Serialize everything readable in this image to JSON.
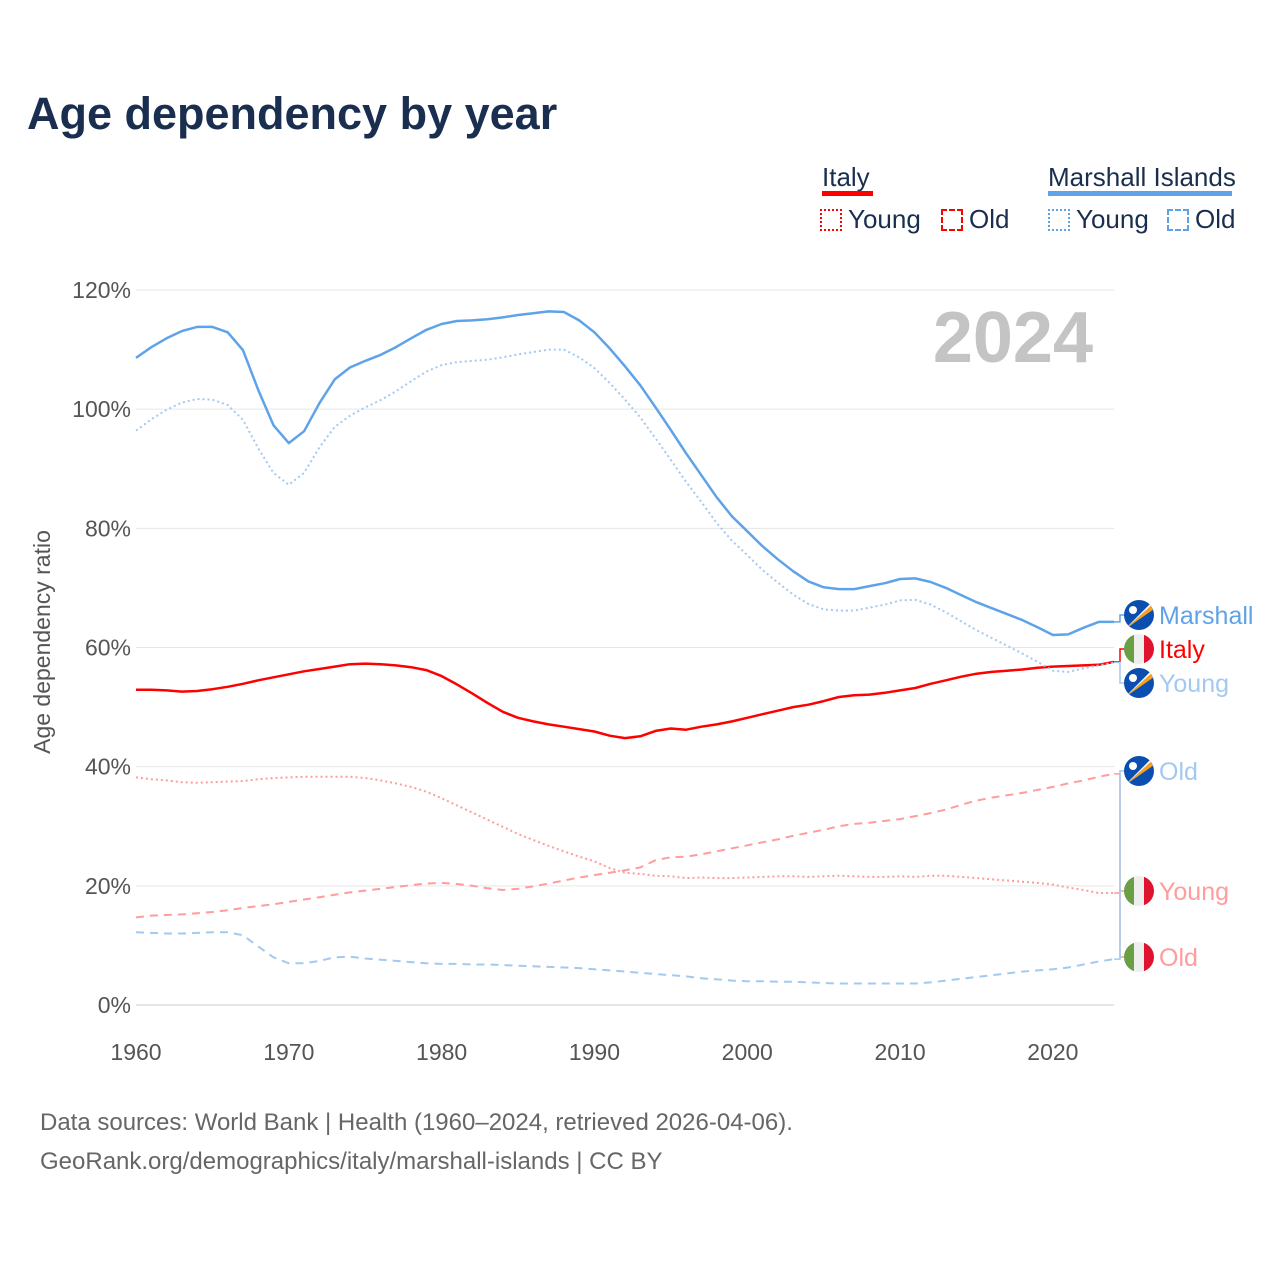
{
  "title": "Age dependency by year",
  "legend": {
    "groups": [
      {
        "country": "Italy",
        "color": "#ff0000",
        "young": "Young",
        "old": "Old"
      },
      {
        "country": "Marshall Islands",
        "color": "#5ea3e8",
        "young": "Young",
        "old": "Old"
      }
    ]
  },
  "source": {
    "line1": "Data sources: World Bank | Health (1960–2024, retrieved 2026-04-06).",
    "line2": "GeoRank.org/demographics/italy/marshall-islands | CC BY"
  },
  "chart_data": {
    "type": "line",
    "title": "Age dependency by year",
    "ylabel": "Age dependency ratio",
    "xlabel": "",
    "year_label": "2024",
    "xlim": [
      1960,
      2024
    ],
    "ylim": [
      0,
      120
    ],
    "x_ticks": [
      "1960",
      "1970",
      "1980",
      "1990",
      "2000",
      "2010",
      "2020"
    ],
    "y_ticks": [
      "0%",
      "20%",
      "40%",
      "60%",
      "80%",
      "100%",
      "120%"
    ],
    "grid": true,
    "x_start": 1960,
    "series": [
      {
        "name": "Marshall Islands",
        "label": "Marshall",
        "style": "solid",
        "color": "#5ea3e8",
        "flag": "marshall-islands",
        "values": [
          108.6,
          110.4,
          111.9,
          113.1,
          113.8,
          113.8,
          112.9,
          109.9,
          103.2,
          97.3,
          94.3,
          96.3,
          101.0,
          105.0,
          107.0,
          108.1,
          109.1,
          110.4,
          111.9,
          113.3,
          114.3,
          114.8,
          114.9,
          115.1,
          115.4,
          115.8,
          116.1,
          116.4,
          116.3,
          114.9,
          112.9,
          110.2,
          107.2,
          104.0,
          100.3,
          96.5,
          92.6,
          88.9,
          85.2,
          82.0,
          79.5,
          77.0,
          74.8,
          72.8,
          71.1,
          70.1,
          69.8,
          69.8,
          70.3,
          70.8,
          71.5,
          71.6,
          71.0,
          70.0,
          68.8,
          67.6,
          66.6,
          65.6,
          64.6,
          63.4,
          62.1,
          62.2,
          63.3,
          64.3,
          64.3
        ]
      },
      {
        "name": "Italy",
        "label": "Italy",
        "style": "solid",
        "color": "#ff0000",
        "flag": "italy",
        "values": [
          52.9,
          52.9,
          52.8,
          52.6,
          52.7,
          53.0,
          53.4,
          53.9,
          54.5,
          55.0,
          55.5,
          56.0,
          56.4,
          56.8,
          57.2,
          57.3,
          57.2,
          57.0,
          56.7,
          56.2,
          55.2,
          53.8,
          52.3,
          50.7,
          49.2,
          48.2,
          47.6,
          47.1,
          46.7,
          46.3,
          45.9,
          45.2,
          44.8,
          45.1,
          46.0,
          46.4,
          46.2,
          46.7,
          47.1,
          47.6,
          48.2,
          48.8,
          49.4,
          50.0,
          50.4,
          51.0,
          51.7,
          52.0,
          52.1,
          52.4,
          52.8,
          53.2,
          53.9,
          54.5,
          55.1,
          55.6,
          55.9,
          56.1,
          56.3,
          56.6,
          56.8,
          56.9,
          57.0,
          57.1,
          57.6
        ]
      },
      {
        "name": "Marshall Islands Young",
        "label": "Young",
        "style": "dotted",
        "color": "#a3c9f0",
        "flag": "marshall-islands",
        "values": [
          96.4,
          98.3,
          99.9,
          101.1,
          101.7,
          101.6,
          100.7,
          98.2,
          93.4,
          89.3,
          87.3,
          89.3,
          93.6,
          97.0,
          98.9,
          100.3,
          101.5,
          103.0,
          104.7,
          106.3,
          107.4,
          107.9,
          108.1,
          108.3,
          108.7,
          109.2,
          109.6,
          110.0,
          110.0,
          108.7,
          106.9,
          104.4,
          101.6,
          98.6,
          95.1,
          91.5,
          87.8,
          84.4,
          80.9,
          77.9,
          75.5,
          73.0,
          70.9,
          68.9,
          67.3,
          66.4,
          66.2,
          66.2,
          66.7,
          67.2,
          67.9,
          68.0,
          67.2,
          65.9,
          64.4,
          62.9,
          61.6,
          60.3,
          59.0,
          57.6,
          56.1,
          55.9,
          56.5,
          57.0,
          57.5
        ]
      },
      {
        "name": "Italy Old",
        "label": "Old",
        "style": "dashed",
        "color": "#ff9c9c",
        "flag": "italy",
        "values": [
          14.7,
          15.0,
          15.1,
          15.2,
          15.4,
          15.6,
          15.9,
          16.3,
          16.6,
          16.9,
          17.3,
          17.7,
          18.1,
          18.5,
          18.9,
          19.2,
          19.5,
          19.8,
          20.1,
          20.4,
          20.5,
          20.3,
          20.0,
          19.6,
          19.3,
          19.5,
          19.9,
          20.4,
          20.9,
          21.4,
          21.8,
          22.2,
          22.6,
          23.1,
          24.3,
          24.8,
          24.9,
          25.3,
          25.8,
          26.3,
          26.8,
          27.3,
          27.8,
          28.4,
          28.9,
          29.4,
          30.0,
          30.4,
          30.6,
          30.9,
          31.2,
          31.7,
          32.2,
          32.8,
          33.6,
          34.3,
          34.8,
          35.2,
          35.6,
          36.1,
          36.6,
          37.2,
          37.7,
          38.3,
          38.8
        ]
      },
      {
        "name": "Italy Young",
        "label": "Young",
        "style": "dotted",
        "color": "#ff9c9c",
        "flag": "italy",
        "values": [
          38.2,
          37.9,
          37.7,
          37.4,
          37.3,
          37.4,
          37.5,
          37.6,
          37.9,
          38.1,
          38.2,
          38.3,
          38.3,
          38.3,
          38.3,
          38.1,
          37.7,
          37.2,
          36.6,
          35.8,
          34.7,
          33.5,
          32.3,
          31.1,
          29.9,
          28.7,
          27.7,
          26.7,
          25.8,
          24.9,
          24.1,
          23.0,
          22.2,
          22.0,
          21.7,
          21.6,
          21.3,
          21.4,
          21.3,
          21.3,
          21.4,
          21.5,
          21.6,
          21.6,
          21.5,
          21.6,
          21.7,
          21.6,
          21.5,
          21.5,
          21.6,
          21.5,
          21.7,
          21.7,
          21.5,
          21.3,
          21.1,
          20.9,
          20.7,
          20.5,
          20.2,
          19.7,
          19.3,
          18.8,
          18.8
        ]
      },
      {
        "name": "Marshall Islands Old",
        "label": "Old",
        "style": "dashed",
        "color": "#a3c9f0",
        "flag": "marshall-islands",
        "values": [
          12.2,
          12.1,
          12.0,
          12.0,
          12.1,
          12.2,
          12.2,
          11.7,
          9.8,
          8.0,
          7.0,
          7.0,
          7.4,
          8.0,
          8.1,
          7.8,
          7.6,
          7.4,
          7.2,
          7.0,
          6.9,
          6.9,
          6.8,
          6.8,
          6.7,
          6.6,
          6.5,
          6.4,
          6.3,
          6.2,
          6.0,
          5.8,
          5.6,
          5.4,
          5.2,
          5.0,
          4.8,
          4.5,
          4.3,
          4.1,
          4.0,
          4.0,
          3.9,
          3.9,
          3.8,
          3.7,
          3.6,
          3.6,
          3.6,
          3.6,
          3.6,
          3.6,
          3.8,
          4.1,
          4.4,
          4.7,
          5.0,
          5.3,
          5.6,
          5.8,
          6.0,
          6.3,
          6.8,
          7.3,
          7.7
        ]
      }
    ]
  }
}
